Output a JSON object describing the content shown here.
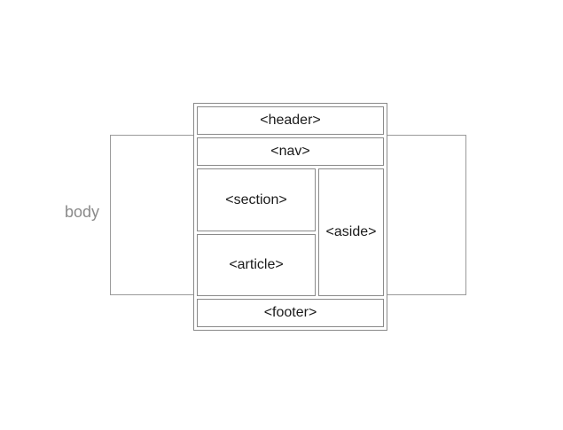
{
  "diagram": {
    "body_label": "body",
    "blocks": {
      "header": "<header>",
      "nav": "<nav>",
      "section": "<section>",
      "article": "<article>",
      "aside": "<aside>",
      "footer": "<footer>"
    }
  },
  "colors": {
    "border": "#8a8a8a",
    "body_label": "#8a8a8a",
    "text": "#1a1a1a",
    "background": "#ffffff"
  }
}
